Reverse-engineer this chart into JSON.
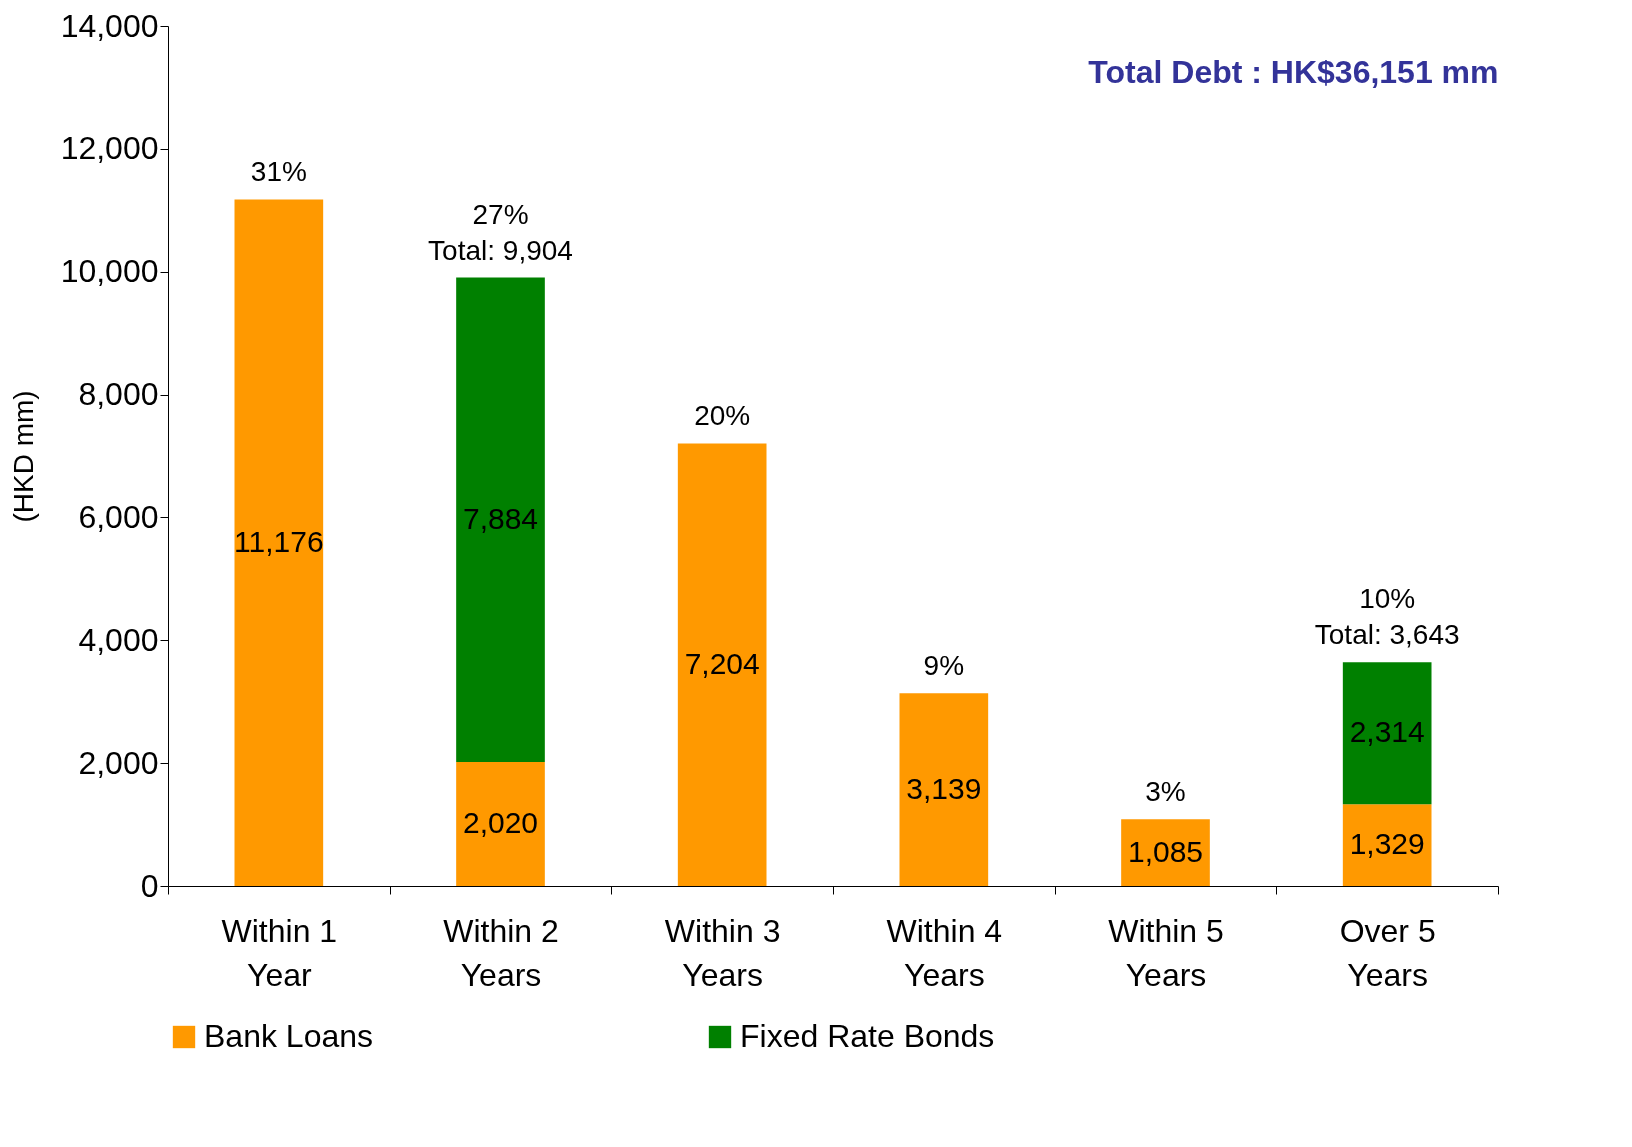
{
  "chart_data": {
    "type": "bar",
    "title": "Total Debt : HK$36,151 mm",
    "ylabel": "(HKD mm)",
    "categories": [
      "Within 1 Year",
      "Within 2 Years",
      "Within 3 Years",
      "Within 4 Years",
      "Within 5 Years",
      "Over 5 Years"
    ],
    "series": [
      {
        "name": "Bank Loans",
        "color": "#ff9900",
        "values": [
          11176,
          2020,
          7204,
          3139,
          1085,
          1329
        ],
        "value_labels": [
          "11,176",
          "2,020",
          "7,204",
          "3,139",
          "1,085",
          "1,329"
        ]
      },
      {
        "name": "Fixed Rate Bonds",
        "color": "#008000",
        "values": [
          null,
          7884,
          null,
          null,
          null,
          2314
        ],
        "value_labels": [
          null,
          "7,884",
          null,
          null,
          null,
          "2,314"
        ]
      }
    ],
    "stacked": true,
    "totals": [
      null,
      "Total: 9,904",
      null,
      null,
      null,
      "Total: 3,643"
    ],
    "annotations": [
      {
        "text": "31%",
        "x": "Within 1 Year",
        "y": 11176
      },
      {
        "text": "27%",
        "x": "Within 2 Years",
        "y": 9904
      },
      {
        "text": "20%",
        "x": "Within 3 Years",
        "y": 7204
      },
      {
        "text": "9%",
        "x": "Within 4 Years",
        "y": 3139
      },
      {
        "text": "3%",
        "x": "Within 5 Years",
        "y": 1085
      },
      {
        "text": "10%",
        "x": "Over 5 Years",
        "y": 3643
      }
    ],
    "ylim": [
      0,
      14000
    ],
    "yticks": [
      {
        "value": 0,
        "label": "0"
      },
      {
        "value": 2000,
        "label": "2,000"
      },
      {
        "value": 4000,
        "label": "4,000"
      },
      {
        "value": 6000,
        "label": "6,000"
      },
      {
        "value": 8000,
        "label": "8,000"
      },
      {
        "value": 10000,
        "label": "10,000"
      },
      {
        "value": 12000,
        "label": "12,000"
      },
      {
        "value": 14000,
        "label": "14,000"
      }
    ],
    "grid": false,
    "legend": "bottom"
  }
}
